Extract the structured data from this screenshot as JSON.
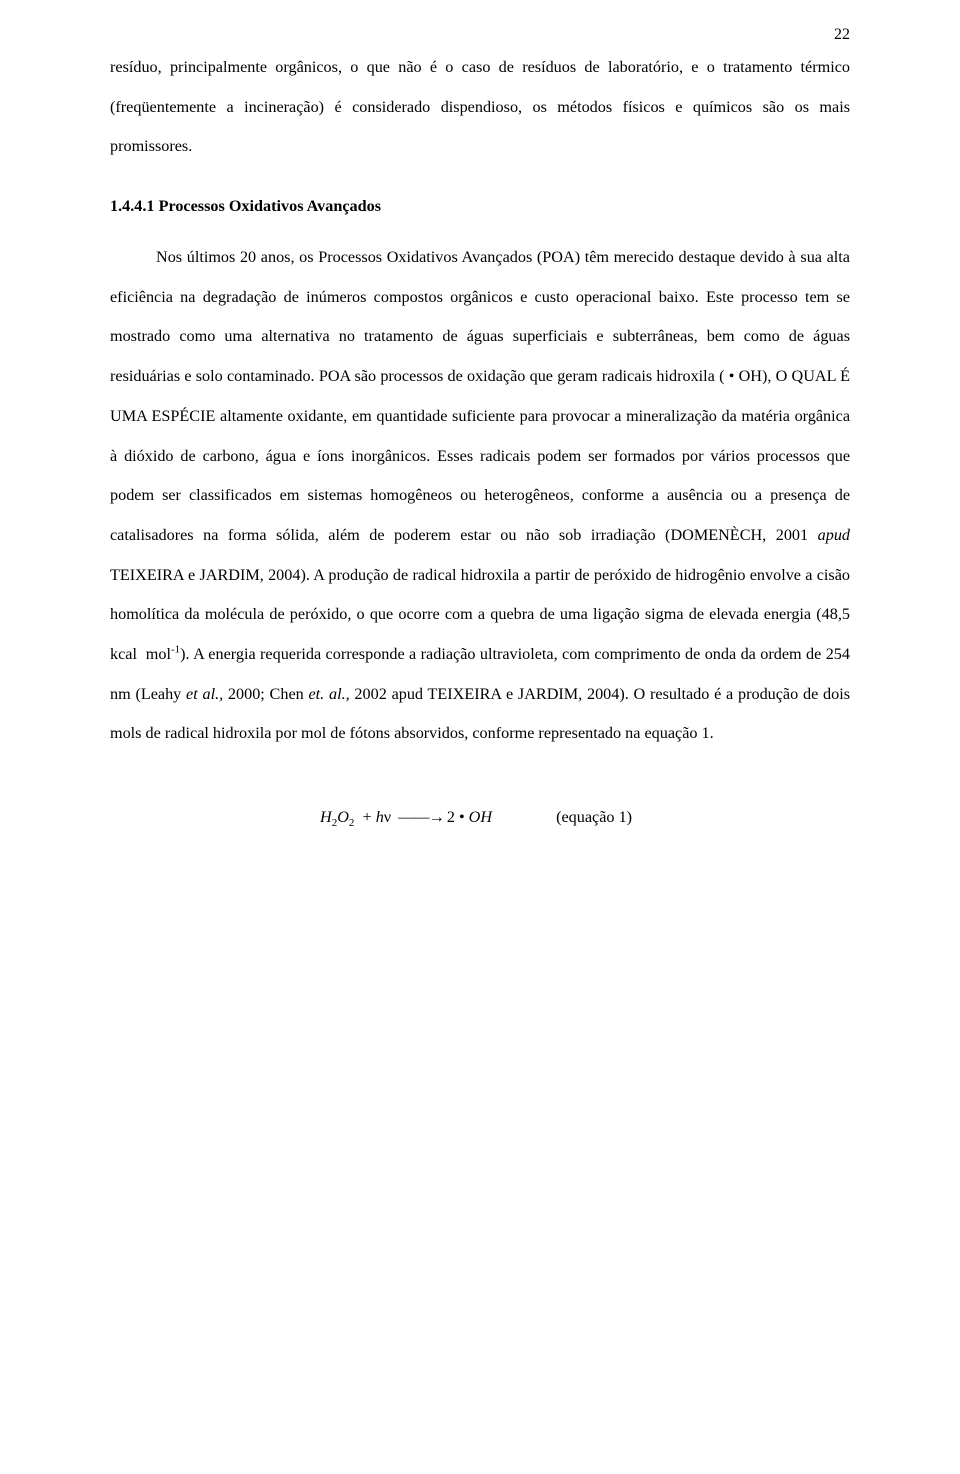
{
  "page_number": "22",
  "para1": "resíduo, principalmente orgânicos, o que não é o caso de resíduos de laboratório, e o tratamento térmico (freqüentemente a incineração) é considerado dispendioso, os métodos físicos e químicos são os mais promissores.",
  "heading": "1.4.4.1   Processos Oxidativos Avançados",
  "para2_indent_first": "Nos últimos 20 anos, os Processos Oxidativos Avançados (POA) têm",
  "para2_rest": "merecido destaque devido à sua alta eficiência na degradação de inúmeros compostos orgânicos e custo operacional baixo. Este processo tem se mostrado como uma alternativa no tratamento de águas superficiais e subterrâneas, bem como de águas residuárias e solo contaminado. POA são processos de oxidação que geram radicais hidroxila (",
  "para2_oh": "OH), O QUAL É UMA ESPÉCIE altamente oxidante, em quantidade suficiente para provocar a mineralização da matéria orgânica à dióxido de carbono, água e íons inorgânicos. Esses radicais podem ser formados por vários processos que podem ser classificados em sistemas homogêneos ou heterogêneos, conforme a ausência ou a presença de catalisadores na forma sólida, além de poderem estar ou não sob irradiação (DOMENÈCH, 2001 ",
  "para2_cit1": "apud",
  "para2_after_cit1": " TEIXEIRA e JARDIM, 2004).  A produção de radical hidroxila a partir de peróxido de hidrogênio envolve a cisão homolítica da molécula de peróxido, o que ocorre com a quebra de uma ligação sigma de elevada energia (48,5 kcal",
  "para2_mol": "mol",
  "para2_exp": "-1",
  "para2_after_mol": "). A energia requerida corresponde a radiação ultravioleta, com comprimento de onda da ordem de 254 nm (Leahy ",
  "para2_cit2": "et al.,",
  "para2_after_cit2": " 2000; Chen ",
  "para2_cit3": "et. al.,",
  "para2_after_cit3": " 2002 apud TEIXEIRA e JARDIM, 2004). O resultado é a produção de dois mols de radical hidroxila por mol de fótons absorvidos, conforme representado na equação 1.",
  "eq_label": "(equação 1)"
}
